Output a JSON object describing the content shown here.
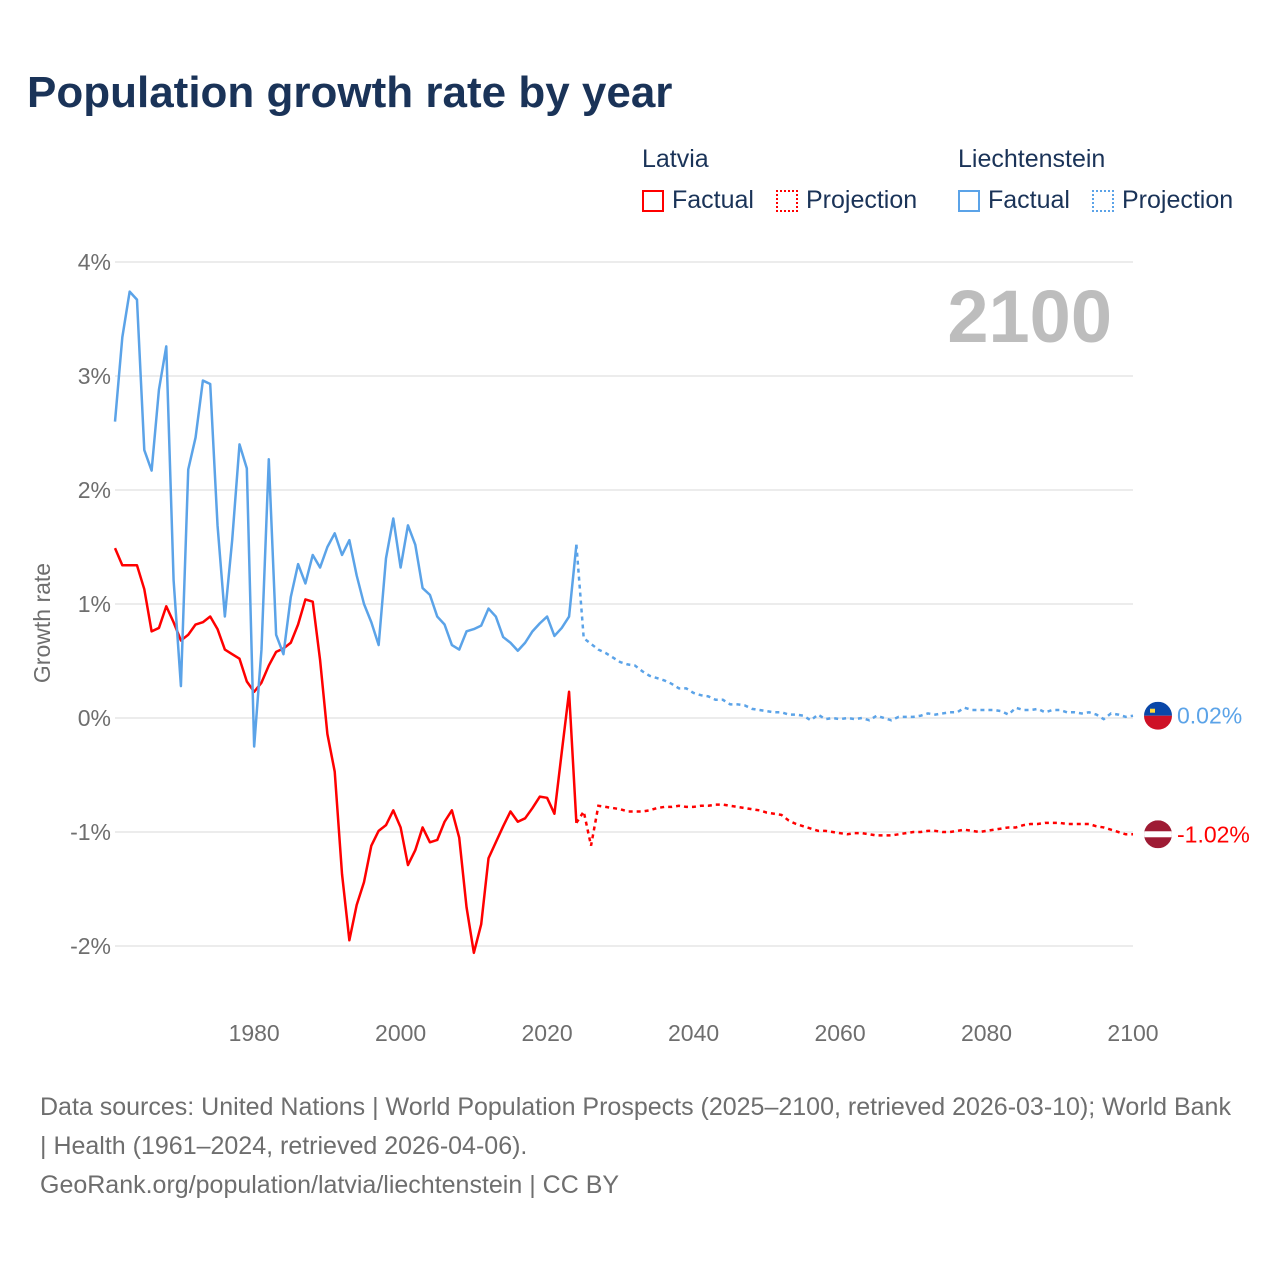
{
  "title": "Population growth rate by year",
  "legend": {
    "groups": [
      {
        "name": "Latvia",
        "factual": "Factual",
        "projection": "Projection"
      },
      {
        "name": "Liechtenstein",
        "factual": "Factual",
        "projection": "Projection"
      }
    ]
  },
  "year_watermark": "2100",
  "footer": {
    "sources": "Data sources: United Nations | World Population Prospects (2025–2100, retrieved 2026-03-10); World Bank | Health (1961–2024, retrieved 2026-04-06).",
    "credit": "GeoRank.org/population/latvia/liechtenstein | CC BY"
  },
  "chart_data": {
    "type": "line",
    "title": "Population growth rate by year",
    "ylabel": "Growth rate",
    "xlabel": "",
    "xlim": [
      1961,
      2100
    ],
    "ylim": [
      -2.5,
      4
    ],
    "x_ticks": [
      1980,
      2000,
      2020,
      2040,
      2060,
      2080,
      2100
    ],
    "y_ticks": [
      4,
      3,
      2,
      1,
      0,
      -1,
      -2
    ],
    "y_tick_labels": [
      "4%",
      "3%",
      "2%",
      "1%",
      "0%",
      "-1%",
      "-2%"
    ],
    "grid": true,
    "legend_position": "top-right",
    "series": [
      {
        "name": "Latvia",
        "color": "#ff0000",
        "end_label": "-1.02%",
        "factual_start": 1961,
        "factual": [
          1.49,
          1.34,
          1.34,
          1.34,
          1.13,
          0.76,
          0.79,
          0.98,
          0.84,
          0.68,
          0.73,
          0.82,
          0.84,
          0.89,
          0.78,
          0.6,
          0.56,
          0.52,
          0.32,
          0.23,
          0.31,
          0.46,
          0.58,
          0.61,
          0.66,
          0.82,
          1.04,
          1.02,
          0.51,
          -0.14,
          -0.47,
          -1.37,
          -1.95,
          -1.64,
          -1.44,
          -1.12,
          -0.99,
          -0.94,
          -0.81,
          -0.96,
          -1.29,
          -1.16,
          -0.96,
          -1.09,
          -1.07,
          -0.91,
          -0.81,
          -1.05,
          -1.66,
          -2.06,
          -1.81,
          -1.23,
          -1.09,
          -0.95,
          -0.82,
          -0.91,
          -0.88,
          -0.79,
          -0.69,
          -0.7,
          -0.84,
          -0.3,
          0.23,
          -0.92
        ],
        "projection_start": 2025,
        "projection": [
          -0.82,
          -1.12,
          -0.77,
          -0.78,
          -0.79,
          -0.8,
          -0.82,
          -0.82,
          -0.82,
          -0.81,
          -0.79,
          -0.78,
          -0.78,
          -0.77,
          -0.78,
          -0.78,
          -0.77,
          -0.77,
          -0.76,
          -0.76,
          -0.77,
          -0.78,
          -0.79,
          -0.8,
          -0.81,
          -0.83,
          -0.84,
          -0.85,
          -0.9,
          -0.93,
          -0.95,
          -0.97,
          -0.99,
          -0.99,
          -1.0,
          -1.01,
          -1.02,
          -1.01,
          -1.01,
          -1.02,
          -1.03,
          -1.03,
          -1.03,
          -1.02,
          -1.01,
          -1.0,
          -1.0,
          -0.99,
          -0.99,
          -1.0,
          -1.0,
          -0.99,
          -0.98,
          -0.99,
          -1.0,
          -0.99,
          -0.98,
          -0.97,
          -0.96,
          -0.96,
          -0.94,
          -0.93,
          -0.93,
          -0.92,
          -0.92,
          -0.92,
          -0.93,
          -0.93,
          -0.93,
          -0.93,
          -0.95,
          -0.96,
          -0.98,
          -1.0,
          -1.02,
          -1.02
        ]
      },
      {
        "name": "Liechtenstein",
        "color": "#5ba3e8",
        "end_label": "0.02%",
        "factual_start": 1961,
        "factual": [
          2.6,
          3.34,
          3.74,
          3.67,
          2.35,
          2.17,
          2.88,
          3.26,
          1.21,
          0.28,
          2.18,
          2.46,
          2.96,
          2.93,
          1.69,
          0.89,
          1.56,
          2.4,
          2.19,
          -0.25,
          0.6,
          2.27,
          0.73,
          0.56,
          1.06,
          1.35,
          1.18,
          1.43,
          1.32,
          1.5,
          1.62,
          1.43,
          1.56,
          1.25,
          1.0,
          0.84,
          0.64,
          1.4,
          1.75,
          1.32,
          1.69,
          1.52,
          1.14,
          1.08,
          0.89,
          0.82,
          0.64,
          0.6,
          0.76,
          0.78,
          0.81,
          0.96,
          0.89,
          0.71,
          0.66,
          0.59,
          0.66,
          0.76,
          0.83,
          0.89,
          0.72,
          0.79,
          0.89,
          1.52
        ],
        "projection_start": 2025,
        "projection": [
          0.7,
          0.65,
          0.6,
          0.57,
          0.53,
          0.49,
          0.47,
          0.46,
          0.41,
          0.37,
          0.35,
          0.33,
          0.3,
          0.26,
          0.26,
          0.22,
          0.2,
          0.19,
          0.16,
          0.16,
          0.12,
          0.12,
          0.11,
          0.08,
          0.07,
          0.06,
          0.05,
          0.05,
          0.03,
          0.03,
          0.02,
          -0.02,
          0.03,
          -0.01,
          0.0,
          -0.01,
          0.0,
          -0.01,
          0.0,
          -0.02,
          0.02,
          0.0,
          -0.02,
          0.01,
          0.01,
          0.01,
          0.02,
          0.04,
          0.03,
          0.04,
          0.05,
          0.05,
          0.09,
          0.07,
          0.07,
          0.07,
          0.07,
          0.06,
          0.03,
          0.09,
          0.07,
          0.07,
          0.08,
          0.05,
          0.07,
          0.07,
          0.05,
          0.05,
          0.04,
          0.05,
          0.03,
          -0.01,
          0.04,
          0.03,
          0.01,
          0.02
        ]
      }
    ]
  }
}
